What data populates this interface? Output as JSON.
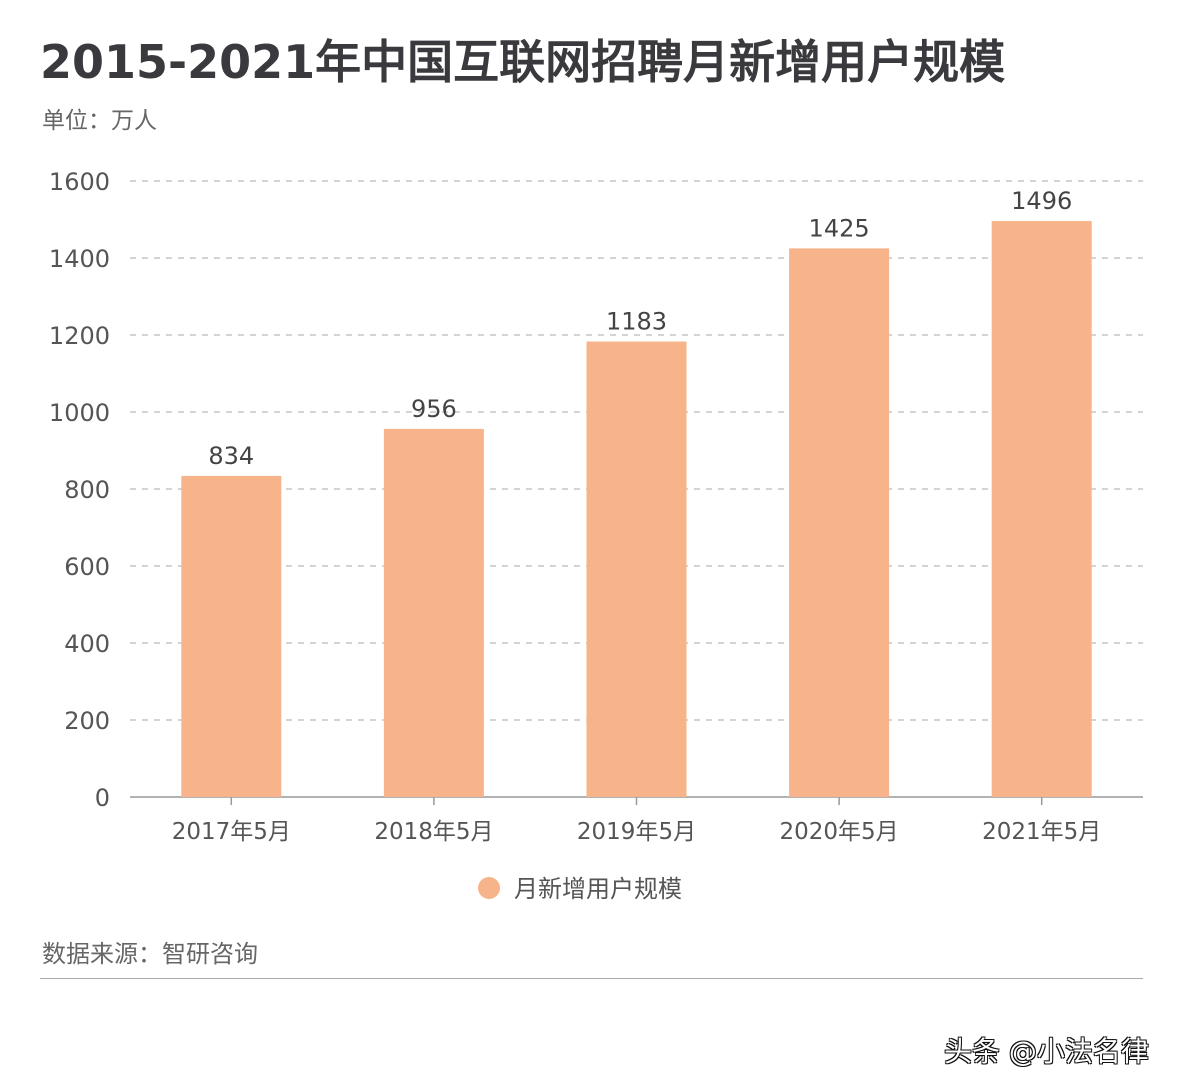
{
  "chart_data": {
    "type": "bar",
    "title": "2015-2021年中国互联网招聘月新增用户规模",
    "unit_label": "单位：万人",
    "categories": [
      "2017年5月",
      "2018年5月",
      "2019年5月",
      "2020年5月",
      "2021年5月"
    ],
    "series": [
      {
        "name": "月新增用户规模",
        "values": [
          834,
          956,
          1183,
          1425,
          1496
        ]
      }
    ],
    "ylim": [
      0,
      1600
    ],
    "yticks": [
      0,
      200,
      400,
      600,
      800,
      1000,
      1200,
      1400,
      1600
    ],
    "grid": true,
    "legend_position": "bottom",
    "bar_color": "#f7b48a",
    "source": "数据来源：智研咨询"
  },
  "footer": {
    "watermark": "头条 @小法名律"
  }
}
